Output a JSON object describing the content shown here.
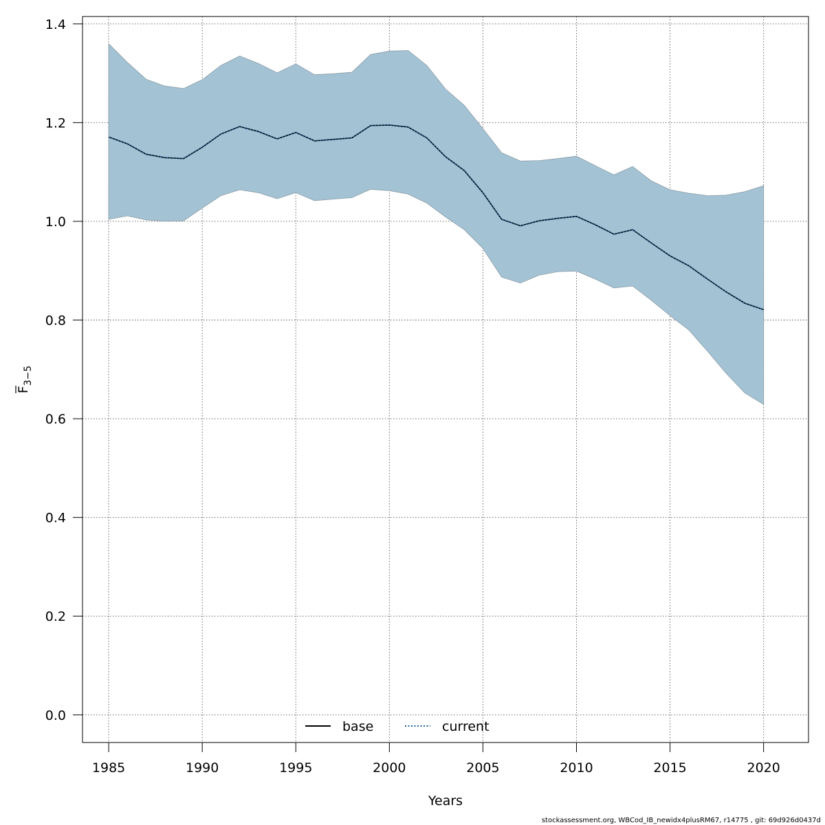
{
  "chart_data": {
    "type": "area",
    "xlabel": "Years",
    "ylabel": {
      "main": "F",
      "sub": "3−5",
      "overline": true
    },
    "xlim": [
      1983.6,
      2022.4
    ],
    "ylim": [
      -0.056,
      1.415
    ],
    "xticks": [
      1985,
      1990,
      1995,
      2000,
      2005,
      2010,
      2015,
      2020
    ],
    "yticks": [
      0.0,
      0.2,
      0.4,
      0.6,
      0.8,
      1.0,
      1.2,
      1.4
    ],
    "ytick_labels": [
      "0.0",
      "0.2",
      "0.4",
      "0.6",
      "0.8",
      "1.0",
      "1.2",
      "1.4"
    ],
    "grid": true,
    "legend_position": "bottom-center",
    "band_color": "#a3c3d4",
    "band_edge_color": "#8a9aa6",
    "x": [
      1985,
      1986,
      1987,
      1988,
      1989,
      1990,
      1991,
      1992,
      1993,
      1994,
      1995,
      1996,
      1997,
      1998,
      1999,
      2000,
      2001,
      2002,
      2003,
      2004,
      2005,
      2006,
      2007,
      2008,
      2009,
      2010,
      2011,
      2012,
      2013,
      2014,
      2015,
      2016,
      2017,
      2018,
      2019,
      2020
    ],
    "series": [
      {
        "name": "base",
        "style": "solid",
        "color": "#000000",
        "values": [
          1.171,
          1.157,
          1.136,
          1.129,
          1.127,
          1.15,
          1.177,
          1.192,
          1.182,
          1.167,
          1.18,
          1.163,
          1.166,
          1.169,
          1.194,
          1.195,
          1.191,
          1.169,
          1.131,
          1.103,
          1.058,
          1.004,
          0.991,
          1.001,
          1.006,
          1.01,
          0.993,
          0.974,
          0.983,
          0.956,
          0.93,
          0.91,
          0.883,
          0.857,
          0.834,
          0.821
        ]
      },
      {
        "name": "current",
        "style": "dotted",
        "color": "#1f5f9a",
        "values": [
          1.171,
          1.157,
          1.136,
          1.129,
          1.127,
          1.15,
          1.177,
          1.192,
          1.182,
          1.167,
          1.18,
          1.163,
          1.166,
          1.169,
          1.194,
          1.195,
          1.191,
          1.169,
          1.131,
          1.103,
          1.058,
          1.004,
          0.991,
          1.001,
          1.006,
          1.01,
          0.993,
          0.974,
          0.983,
          0.956,
          0.93,
          0.91,
          0.883,
          0.857,
          0.834,
          0.821
        ]
      }
    ],
    "band": {
      "upper": [
        1.36,
        1.322,
        1.288,
        1.274,
        1.269,
        1.287,
        1.316,
        1.335,
        1.32,
        1.301,
        1.319,
        1.297,
        1.299,
        1.302,
        1.338,
        1.345,
        1.346,
        1.316,
        1.268,
        1.235,
        1.188,
        1.139,
        1.122,
        1.123,
        1.127,
        1.132,
        1.113,
        1.094,
        1.111,
        1.082,
        1.064,
        1.057,
        1.052,
        1.053,
        1.06,
        1.072
      ],
      "lower": [
        1.004,
        1.011,
        1.003,
        1.0,
        1.001,
        1.027,
        1.052,
        1.064,
        1.058,
        1.046,
        1.058,
        1.042,
        1.045,
        1.048,
        1.065,
        1.062,
        1.055,
        1.037,
        1.009,
        0.983,
        0.945,
        0.887,
        0.875,
        0.891,
        0.898,
        0.899,
        0.883,
        0.865,
        0.869,
        0.84,
        0.809,
        0.78,
        0.737,
        0.692,
        0.652,
        0.629
      ]
    }
  },
  "footer": "stockassessment.org, WBCod_IB_newidx4plusRM67, r14775 , git: 69d926d0437d"
}
